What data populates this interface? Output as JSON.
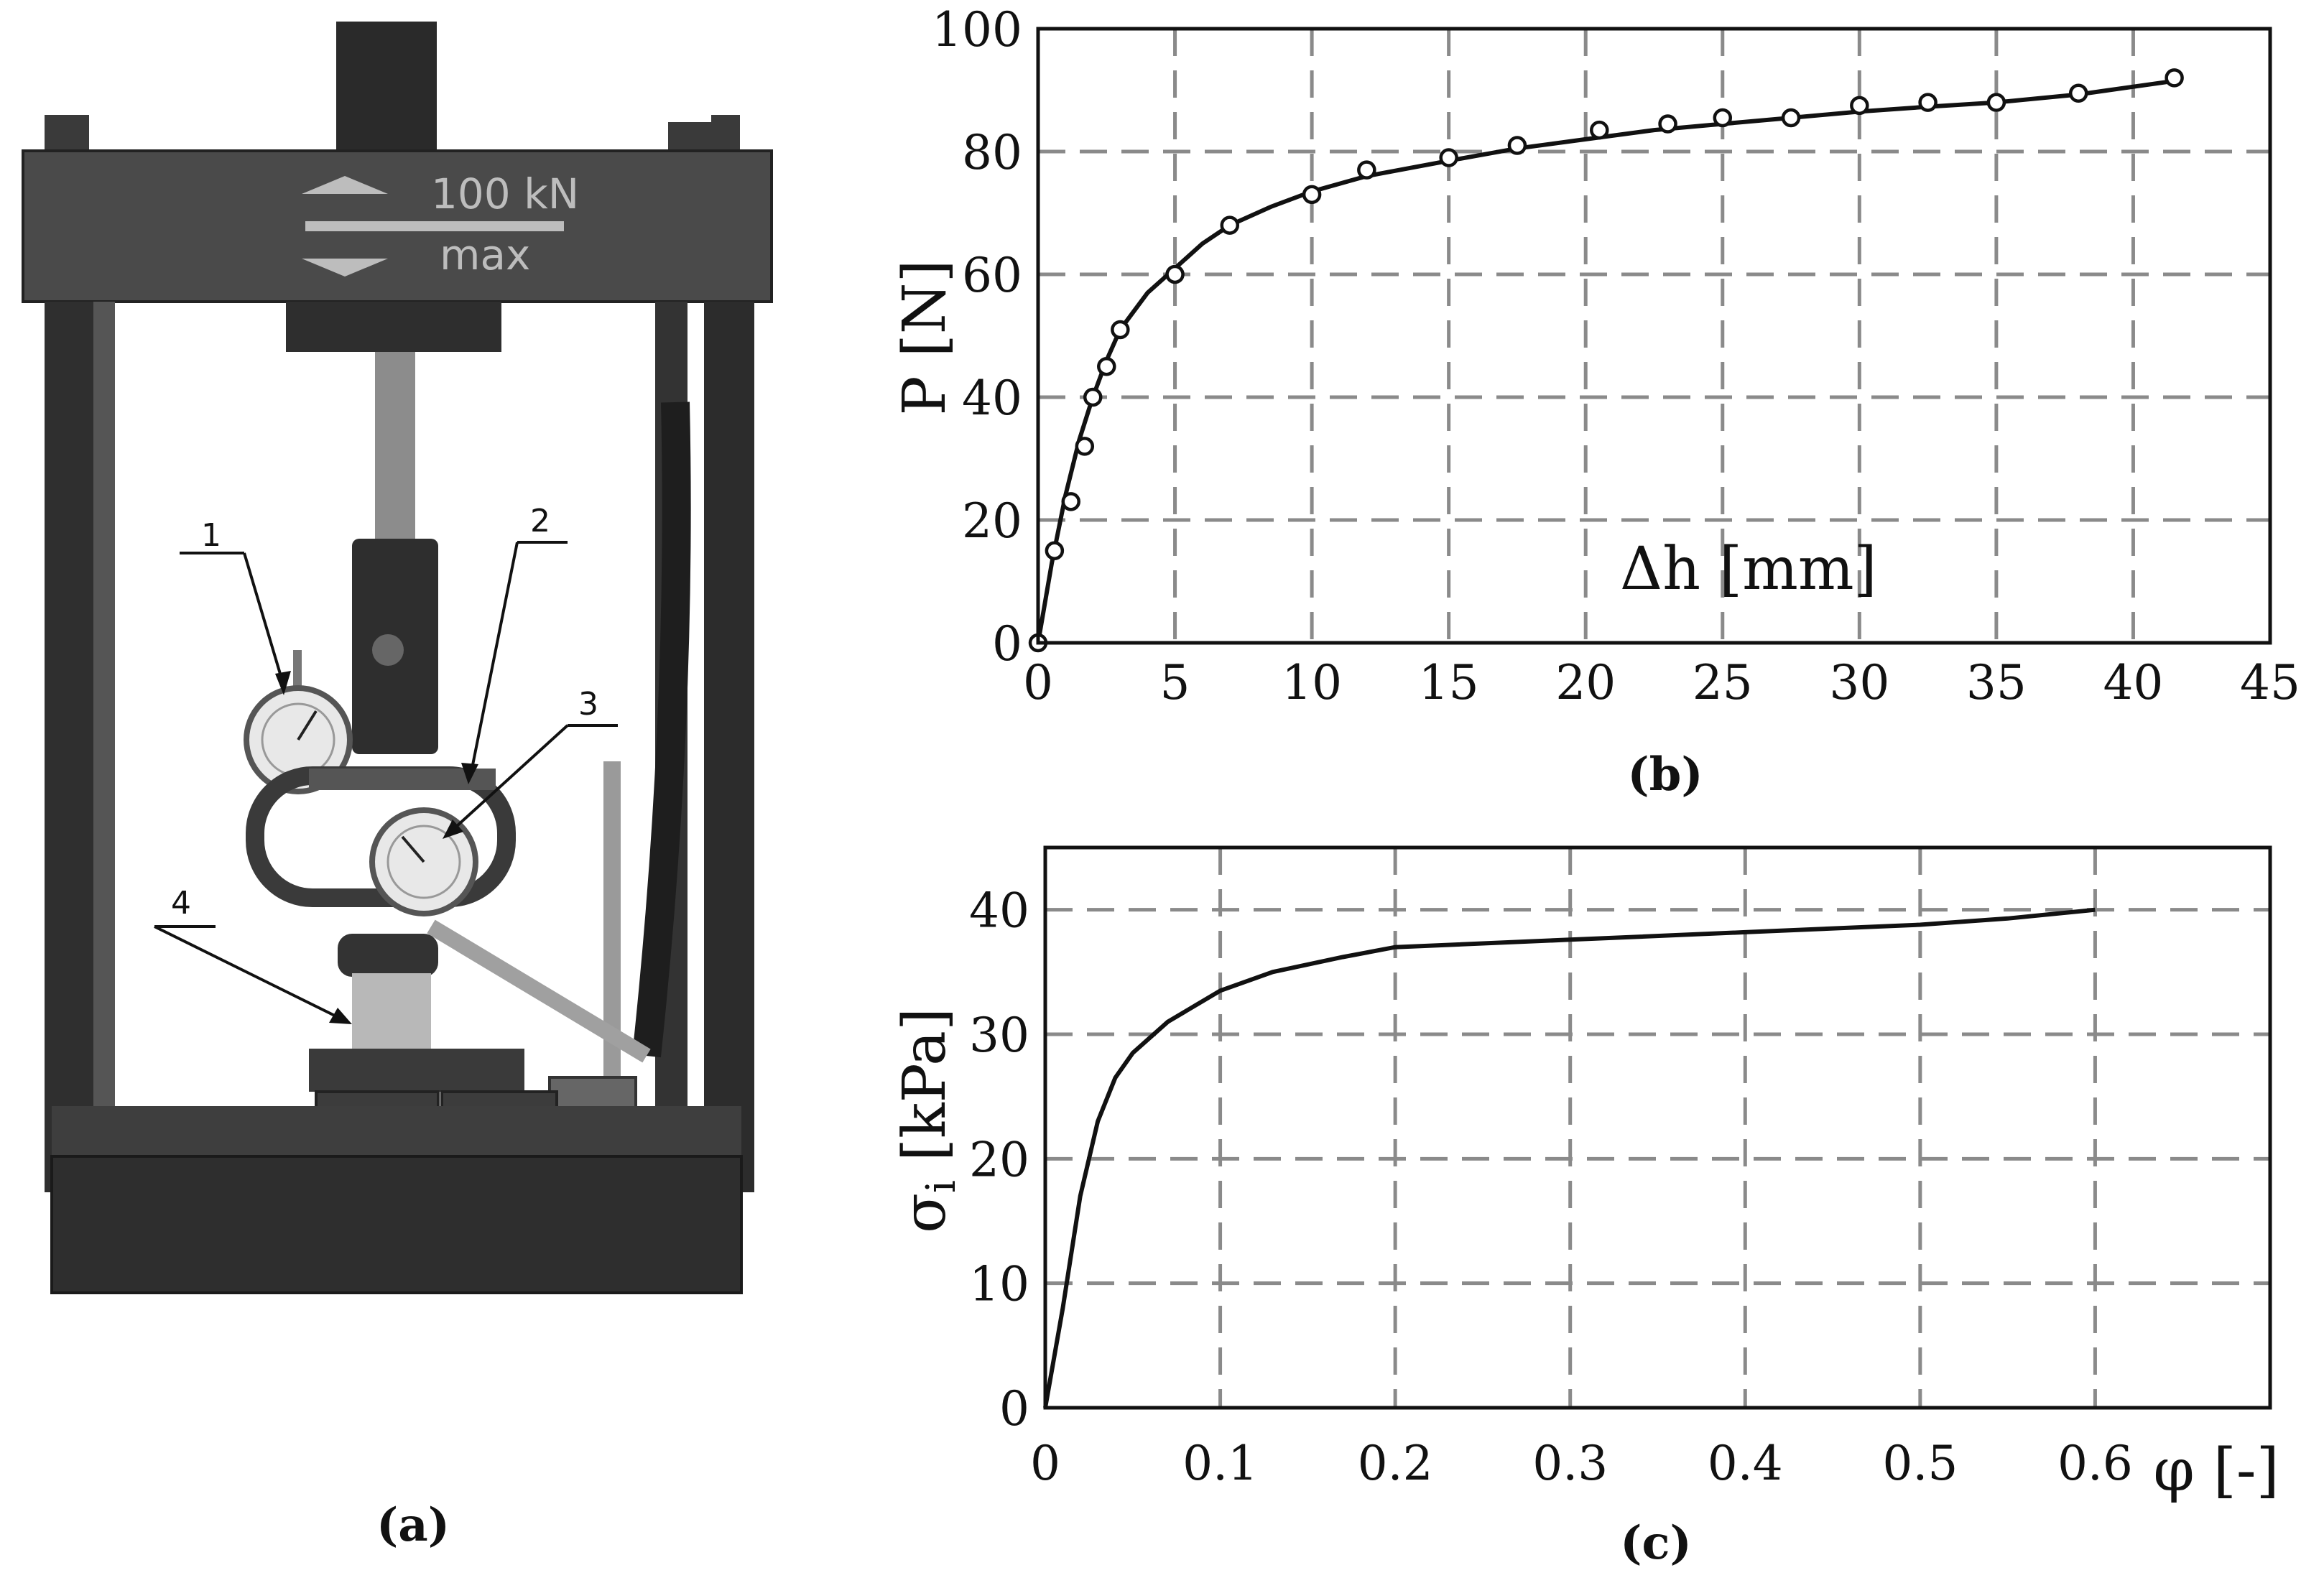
{
  "panel_a": {
    "label": "(a)",
    "plate_text_1": "100 kN",
    "plate_text_2": "max",
    "callouts": [
      "1",
      "2",
      "3",
      "4"
    ]
  },
  "chart_data": [
    {
      "type": "scatter",
      "panel_label": "(b)",
      "xlabel": "Δh [mm]",
      "ylabel": "P [N]",
      "xlim": [
        0,
        45
      ],
      "ylim": [
        0,
        100
      ],
      "x_ticks": [
        "0",
        "5",
        "10",
        "15",
        "20",
        "25",
        "30",
        "35",
        "40",
        "45"
      ],
      "y_ticks": [
        "0",
        "20",
        "40",
        "60",
        "80",
        "100"
      ],
      "grid": true,
      "points": [
        [
          0,
          0
        ],
        [
          0.6,
          15
        ],
        [
          1.2,
          23
        ],
        [
          1.7,
          32
        ],
        [
          2.0,
          40
        ],
        [
          2.5,
          45
        ],
        [
          3.0,
          51
        ],
        [
          5.0,
          60
        ],
        [
          7.0,
          68
        ],
        [
          10.0,
          73
        ],
        [
          12.0,
          77
        ],
        [
          15.0,
          79
        ],
        [
          17.5,
          81
        ],
        [
          20.5,
          83.5
        ],
        [
          23.0,
          84.5
        ],
        [
          25.0,
          85.5
        ],
        [
          27.5,
          85.5
        ],
        [
          30.0,
          87.5
        ],
        [
          32.5,
          88
        ],
        [
          35.0,
          88
        ],
        [
          38.0,
          89.5
        ],
        [
          41.5,
          92
        ]
      ],
      "fit_curve": [
        [
          0,
          0
        ],
        [
          0.5,
          13
        ],
        [
          1.0,
          24
        ],
        [
          1.5,
          33
        ],
        [
          2.0,
          40
        ],
        [
          2.5,
          46
        ],
        [
          3.0,
          51
        ],
        [
          4.0,
          57
        ],
        [
          5.0,
          61
        ],
        [
          6.0,
          65
        ],
        [
          7.0,
          68
        ],
        [
          8.5,
          71
        ],
        [
          10.0,
          73.5
        ],
        [
          12.0,
          76
        ],
        [
          15.0,
          78.5
        ],
        [
          17.5,
          80.5
        ],
        [
          20.0,
          82
        ],
        [
          22.5,
          83.5
        ],
        [
          25.0,
          84.5
        ],
        [
          27.5,
          85.5
        ],
        [
          30.0,
          86.5
        ],
        [
          32.5,
          87.3
        ],
        [
          35.0,
          88
        ],
        [
          38.0,
          89.3
        ],
        [
          41.5,
          91.5
        ]
      ]
    },
    {
      "type": "line",
      "panel_label": "(c)",
      "xlabel": "φ [-]",
      "ylabel_main": "σ",
      "ylabel_sub": "i",
      "ylabel_unit": " [kPa]",
      "xlim": [
        0,
        0.7
      ],
      "ylim": [
        0,
        45
      ],
      "x_ticks": [
        "0",
        "0.1",
        "0.2",
        "0.3",
        "0.4",
        "0.5",
        "0.6"
      ],
      "y_ticks": [
        "0",
        "10",
        "20",
        "30",
        "40"
      ],
      "grid": true,
      "points": [
        [
          0,
          0
        ],
        [
          0.01,
          8
        ],
        [
          0.02,
          17
        ],
        [
          0.03,
          23
        ],
        [
          0.04,
          26.5
        ],
        [
          0.05,
          28.5
        ],
        [
          0.07,
          31
        ],
        [
          0.1,
          33.5
        ],
        [
          0.13,
          35
        ],
        [
          0.17,
          36.2
        ],
        [
          0.2,
          37
        ],
        [
          0.3,
          37.6
        ],
        [
          0.4,
          38.2
        ],
        [
          0.5,
          38.8
        ],
        [
          0.55,
          39.3
        ],
        [
          0.6,
          40
        ]
      ]
    }
  ]
}
